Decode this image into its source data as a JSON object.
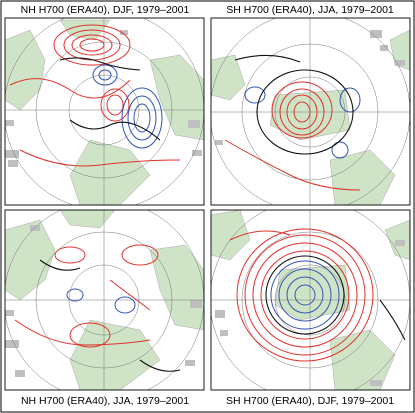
{
  "figure": {
    "panels": [
      {
        "id": "nh-djf",
        "title": "NH H700 (ERA40), DJF, 1979–2001",
        "title_position": "top",
        "hemisphere": "north",
        "season": "DJF"
      },
      {
        "id": "sh-jja",
        "title": "SH H700 (ERA40), JJA, 1979–2001",
        "title_position": "top",
        "hemisphere": "south",
        "season": "JJA"
      },
      {
        "id": "nh-jja",
        "title": "NH H700 (ERA40), JJA, 1979–2001",
        "title_position": "bottom",
        "hemisphere": "north",
        "season": "JJA"
      },
      {
        "id": "sh-djf",
        "title": "SH H700 (ERA40), DJF, 1979–2001",
        "title_position": "bottom",
        "hemisphere": "south",
        "season": "DJF"
      }
    ],
    "colors": {
      "land": "#cfe3c6",
      "masked": "#bfbfbf",
      "positive_contour": "#e0322a",
      "negative_contour": "#3455b4",
      "zero_contour": "#111111",
      "grid": "#777777"
    }
  }
}
